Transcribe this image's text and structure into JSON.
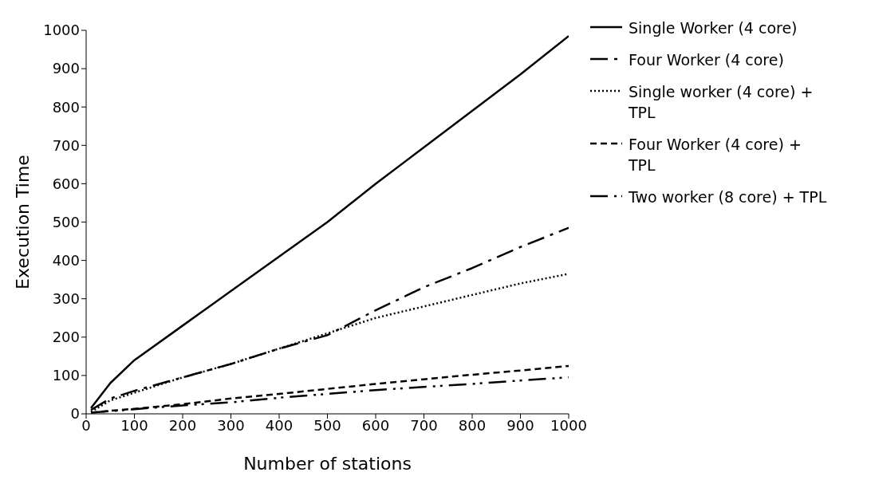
{
  "chart_data": {
    "type": "line",
    "xlabel": "Number of stations",
    "ylabel": "Execution Time",
    "x": [
      10,
      50,
      100,
      200,
      300,
      400,
      500,
      600,
      700,
      800,
      900,
      1000
    ],
    "series": [
      {
        "name": "Single Worker (4 core)",
        "color": "#000000",
        "line_style": "solid",
        "values": [
          15,
          80,
          140,
          230,
          320,
          410,
          500,
          600,
          695,
          790,
          885,
          985
        ]
      },
      {
        "name": "Four Worker (4 core)",
        "color": "#000000",
        "line_style": "longdashdot",
        "values": [
          10,
          40,
          60,
          95,
          130,
          170,
          205,
          270,
          330,
          380,
          435,
          485
        ]
      },
      {
        "name": "Single worker (4 core) + TPL",
        "color": "#000000",
        "line_style": "dotted",
        "values": [
          5,
          35,
          55,
          95,
          130,
          170,
          210,
          250,
          280,
          310,
          340,
          365
        ]
      },
      {
        "name": "Four Worker (4 core) + TPL",
        "color": "#000000",
        "line_style": "dashed",
        "values": [
          3,
          8,
          13,
          25,
          40,
          52,
          65,
          78,
          90,
          102,
          113,
          125
        ]
      },
      {
        "name": "Two worker (8 core) + TPL",
        "color": "#000000",
        "line_style": "dashdotdot",
        "values": [
          3,
          7,
          12,
          22,
          30,
          42,
          52,
          62,
          70,
          78,
          87,
          95
        ]
      }
    ],
    "xlim": [
      0,
      1000
    ],
    "xticks": [
      0,
      100,
      200,
      300,
      400,
      500,
      600,
      700,
      800,
      900,
      1000
    ],
    "ylim": [
      0,
      1000
    ],
    "yticks": [
      0,
      100,
      200,
      300,
      400,
      500,
      600,
      700,
      800,
      900,
      1000
    ],
    "grid": false,
    "legend": "right",
    "marker": "none"
  }
}
